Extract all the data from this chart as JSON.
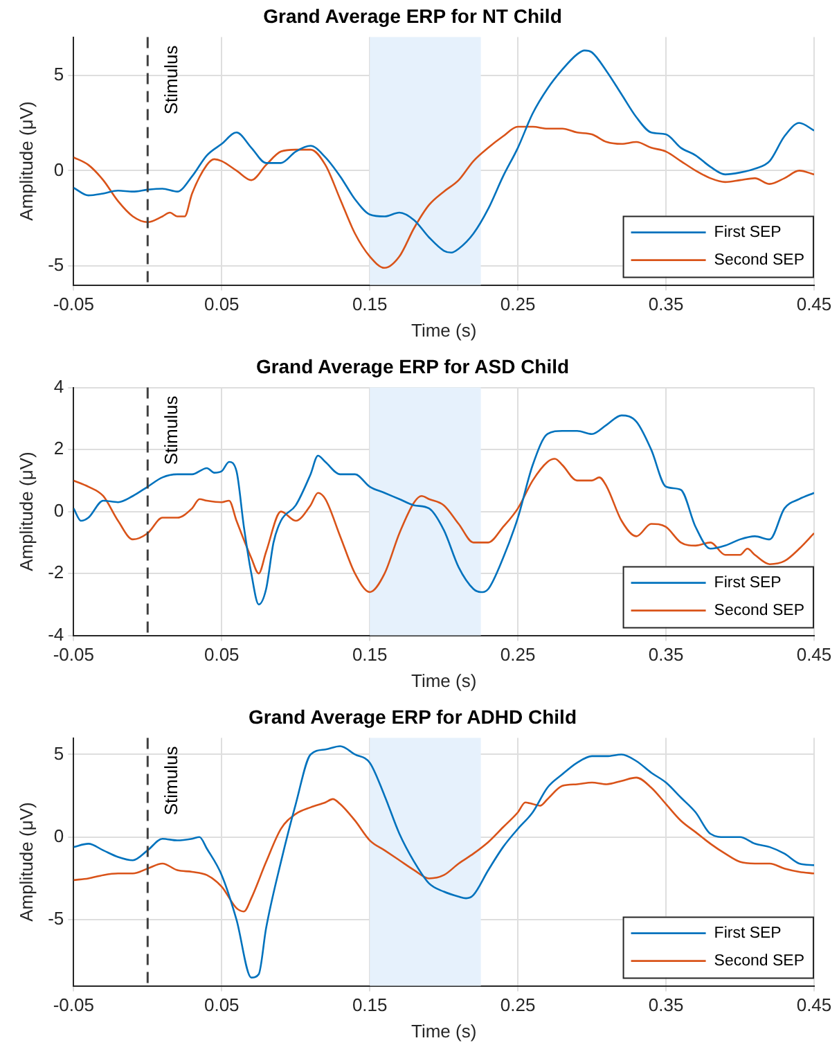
{
  "chart_data": [
    {
      "type": "line",
      "title": "Grand Average ERP for NT Child",
      "xlabel": "Time (s)",
      "ylabel": "Amplitude (μV)",
      "xlim": [
        -0.05,
        0.45
      ],
      "xticks": [
        -0.05,
        0.05,
        0.15,
        0.25,
        0.35,
        0.45
      ],
      "ylim": [
        -6,
        7
      ],
      "yticks": [
        -5,
        0,
        5
      ],
      "grid": true,
      "legend": "bottom right",
      "marker": "none",
      "line_style": "solid",
      "ref_lines": [
        {
          "axis": "x",
          "value": 0,
          "label": "Stimulus",
          "color": "#404040",
          "line_style": "dashed"
        }
      ],
      "bands": [
        {
          "axis": "x",
          "from": 0.15,
          "to": 0.225,
          "color": "#e6f1fc"
        }
      ],
      "series": [
        {
          "name": "First SEP",
          "color": "#0072bd",
          "x": [
            -0.05,
            -0.04,
            -0.03,
            -0.02,
            -0.01,
            0,
            0.01,
            0.02,
            0.03,
            0.04,
            0.05,
            0.06,
            0.07,
            0.08,
            0.09,
            0.1,
            0.11,
            0.12,
            0.13,
            0.14,
            0.15,
            0.16,
            0.17,
            0.18,
            0.19,
            0.2,
            0.205,
            0.21,
            0.22,
            0.23,
            0.24,
            0.25,
            0.26,
            0.27,
            0.28,
            0.29,
            0.295,
            0.3,
            0.31,
            0.32,
            0.33,
            0.34,
            0.35,
            0.36,
            0.37,
            0.38,
            0.39,
            0.4,
            0.41,
            0.42,
            0.43,
            0.44,
            0.45
          ],
          "values": [
            -0.9,
            -1.3,
            -1.2,
            -1.05,
            -1.1,
            -1.0,
            -0.95,
            -1.1,
            -0.3,
            0.8,
            1.4,
            2.0,
            1.2,
            0.4,
            0.4,
            1.0,
            1.3,
            0.7,
            -0.3,
            -1.5,
            -2.3,
            -2.4,
            -2.2,
            -2.6,
            -3.5,
            -4.2,
            -4.3,
            -4.1,
            -3.3,
            -2.0,
            -0.3,
            1.2,
            3.0,
            4.3,
            5.3,
            6.1,
            6.3,
            6.2,
            5.2,
            4.0,
            2.8,
            2.0,
            1.9,
            1.2,
            0.8,
            0.2,
            -0.2,
            -0.1,
            0.1,
            0.5,
            1.8,
            2.5,
            2.1
          ]
        },
        {
          "name": "Second SEP",
          "color": "#d95319",
          "x": [
            -0.05,
            -0.04,
            -0.03,
            -0.02,
            -0.01,
            0,
            0.01,
            0.015,
            0.02,
            0.025,
            0.03,
            0.04,
            0.045,
            0.05,
            0.06,
            0.07,
            0.08,
            0.09,
            0.1,
            0.11,
            0.12,
            0.13,
            0.14,
            0.15,
            0.16,
            0.17,
            0.18,
            0.19,
            0.2,
            0.21,
            0.22,
            0.23,
            0.24,
            0.25,
            0.26,
            0.27,
            0.28,
            0.29,
            0.3,
            0.31,
            0.32,
            0.33,
            0.34,
            0.35,
            0.36,
            0.37,
            0.38,
            0.39,
            0.4,
            0.41,
            0.42,
            0.43,
            0.44,
            0.45
          ],
          "values": [
            0.7,
            0.3,
            -0.5,
            -1.6,
            -2.4,
            -2.7,
            -2.4,
            -2.2,
            -2.4,
            -2.4,
            -1.2,
            0.3,
            0.6,
            0.5,
            0.0,
            -0.5,
            0.3,
            1.0,
            1.1,
            1.1,
            0.3,
            -1.5,
            -3.3,
            -4.5,
            -5.1,
            -4.5,
            -3.0,
            -1.8,
            -1.1,
            -0.5,
            0.5,
            1.2,
            1.8,
            2.3,
            2.3,
            2.2,
            2.2,
            2.0,
            1.9,
            1.5,
            1.4,
            1.5,
            1.2,
            1.0,
            0.5,
            0.0,
            -0.4,
            -0.6,
            -0.5,
            -0.4,
            -0.7,
            -0.4,
            0.0,
            -0.2
          ]
        }
      ]
    },
    {
      "type": "line",
      "title": "Grand Average ERP for ASD Child",
      "xlabel": "Time (s)",
      "ylabel": "Amplitude (μV)",
      "xlim": [
        -0.05,
        0.45
      ],
      "xticks": [
        -0.05,
        0.05,
        0.15,
        0.25,
        0.35,
        0.45
      ],
      "ylim": [
        -4,
        4
      ],
      "yticks": [
        -4,
        -2,
        0,
        2,
        4
      ],
      "grid": true,
      "legend": "bottom right",
      "marker": "none",
      "line_style": "solid",
      "ref_lines": [
        {
          "axis": "x",
          "value": 0,
          "label": "Stimulus",
          "color": "#404040",
          "line_style": "dashed"
        }
      ],
      "bands": [
        {
          "axis": "x",
          "from": 0.15,
          "to": 0.225,
          "color": "#e6f1fc"
        }
      ],
      "series": [
        {
          "name": "First SEP",
          "color": "#0072bd",
          "x": [
            -0.05,
            -0.045,
            -0.04,
            -0.03,
            -0.02,
            -0.01,
            0,
            0.01,
            0.02,
            0.03,
            0.04,
            0.045,
            0.05,
            0.055,
            0.06,
            0.065,
            0.07,
            0.075,
            0.08,
            0.085,
            0.09,
            0.1,
            0.11,
            0.115,
            0.12,
            0.13,
            0.14,
            0.15,
            0.16,
            0.17,
            0.18,
            0.19,
            0.2,
            0.21,
            0.22,
            0.225,
            0.23,
            0.24,
            0.25,
            0.26,
            0.27,
            0.28,
            0.29,
            0.3,
            0.31,
            0.32,
            0.33,
            0.34,
            0.35,
            0.36,
            0.37,
            0.38,
            0.39,
            0.4,
            0.41,
            0.42,
            0.43,
            0.44,
            0.45
          ],
          "values": [
            0.1,
            -0.3,
            -0.2,
            0.35,
            0.3,
            0.5,
            0.8,
            1.1,
            1.2,
            1.2,
            1.4,
            1.25,
            1.3,
            1.6,
            1.3,
            -0.5,
            -2.0,
            -3.0,
            -2.5,
            -1.0,
            -0.3,
            0.2,
            1.2,
            1.8,
            1.6,
            1.2,
            1.2,
            0.8,
            0.6,
            0.4,
            0.2,
            0.1,
            -0.6,
            -1.8,
            -2.5,
            -2.6,
            -2.5,
            -1.5,
            -0.2,
            1.5,
            2.5,
            2.6,
            2.6,
            2.5,
            2.8,
            3.1,
            2.9,
            2.0,
            0.8,
            0.7,
            -0.5,
            -1.2,
            -1.1,
            -0.9,
            -0.8,
            -0.9,
            0.1,
            0.4,
            0.6
          ]
        },
        {
          "name": "Second SEP",
          "color": "#d95319",
          "x": [
            -0.05,
            -0.04,
            -0.03,
            -0.02,
            -0.01,
            0,
            0.01,
            0.02,
            0.03,
            0.035,
            0.04,
            0.05,
            0.055,
            0.06,
            0.07,
            0.075,
            0.08,
            0.09,
            0.1,
            0.11,
            0.115,
            0.12,
            0.13,
            0.14,
            0.15,
            0.16,
            0.17,
            0.18,
            0.185,
            0.19,
            0.2,
            0.21,
            0.22,
            0.23,
            0.24,
            0.25,
            0.26,
            0.27,
            0.275,
            0.28,
            0.29,
            0.3,
            0.305,
            0.31,
            0.32,
            0.33,
            0.34,
            0.35,
            0.36,
            0.37,
            0.38,
            0.39,
            0.4,
            0.405,
            0.41,
            0.42,
            0.43,
            0.44,
            0.45
          ],
          "values": [
            1.0,
            0.8,
            0.5,
            -0.3,
            -0.9,
            -0.7,
            -0.2,
            -0.2,
            0.1,
            0.4,
            0.35,
            0.3,
            0.35,
            -0.3,
            -1.5,
            -2.0,
            -1.3,
            0.0,
            -0.3,
            0.2,
            0.6,
            0.4,
            -0.8,
            -2.0,
            -2.6,
            -2.0,
            -0.7,
            0.3,
            0.5,
            0.4,
            0.2,
            -0.4,
            -1.0,
            -1.0,
            -0.5,
            0.1,
            1.0,
            1.6,
            1.7,
            1.5,
            1.0,
            1.0,
            1.1,
            0.8,
            -0.3,
            -0.8,
            -0.4,
            -0.5,
            -1.0,
            -1.1,
            -1.0,
            -1.4,
            -1.4,
            -1.2,
            -1.4,
            -1.7,
            -1.6,
            -1.2,
            -0.7
          ]
        }
      ]
    },
    {
      "type": "line",
      "title": "Grand Average ERP for ADHD Child",
      "xlabel": "Time (s)",
      "ylabel": "Amplitude (μV)",
      "xlim": [
        -0.05,
        0.45
      ],
      "xticks": [
        -0.05,
        0.05,
        0.15,
        0.25,
        0.35,
        0.45
      ],
      "ylim": [
        -9,
        6
      ],
      "yticks": [
        -5,
        0,
        5
      ],
      "grid": true,
      "legend": "bottom right",
      "marker": "none",
      "line_style": "solid",
      "ref_lines": [
        {
          "axis": "x",
          "value": 0,
          "label": "Stimulus",
          "color": "#404040",
          "line_style": "dashed"
        }
      ],
      "bands": [
        {
          "axis": "x",
          "from": 0.15,
          "to": 0.225,
          "color": "#e6f1fc"
        }
      ],
      "series": [
        {
          "name": "First SEP",
          "color": "#0072bd",
          "x": [
            -0.05,
            -0.04,
            -0.03,
            -0.02,
            -0.01,
            0,
            0.01,
            0.02,
            0.03,
            0.035,
            0.04,
            0.05,
            0.06,
            0.07,
            0.075,
            0.08,
            0.09,
            0.1,
            0.11,
            0.12,
            0.13,
            0.14,
            0.15,
            0.16,
            0.17,
            0.18,
            0.19,
            0.2,
            0.21,
            0.215,
            0.22,
            0.23,
            0.24,
            0.25,
            0.26,
            0.27,
            0.28,
            0.29,
            0.3,
            0.31,
            0.32,
            0.33,
            0.34,
            0.35,
            0.36,
            0.37,
            0.38,
            0.39,
            0.4,
            0.41,
            0.42,
            0.43,
            0.44,
            0.45
          ],
          "values": [
            -0.6,
            -0.4,
            -0.8,
            -1.2,
            -1.4,
            -0.8,
            -0.1,
            -0.2,
            -0.1,
            0.0,
            -0.7,
            -2.3,
            -5.0,
            -8.5,
            -8.3,
            -5.5,
            -1.5,
            2.0,
            5.0,
            5.3,
            5.5,
            5.0,
            4.5,
            2.5,
            0.2,
            -1.5,
            -2.8,
            -3.3,
            -3.6,
            -3.7,
            -3.5,
            -2.0,
            -0.6,
            0.5,
            1.5,
            3.0,
            3.8,
            4.5,
            4.9,
            4.9,
            5.0,
            4.6,
            3.9,
            3.3,
            2.4,
            1.5,
            0.2,
            0.0,
            0.0,
            -0.4,
            -0.6,
            -1.0,
            -1.6,
            -1.7
          ]
        },
        {
          "name": "Second SEP",
          "color": "#d95319",
          "x": [
            -0.05,
            -0.04,
            -0.03,
            -0.02,
            -0.01,
            0,
            0.01,
            0.02,
            0.03,
            0.04,
            0.05,
            0.06,
            0.065,
            0.07,
            0.08,
            0.09,
            0.1,
            0.11,
            0.12,
            0.125,
            0.13,
            0.14,
            0.15,
            0.16,
            0.17,
            0.18,
            0.19,
            0.2,
            0.21,
            0.22,
            0.23,
            0.24,
            0.25,
            0.255,
            0.26,
            0.265,
            0.27,
            0.28,
            0.29,
            0.3,
            0.31,
            0.32,
            0.33,
            0.34,
            0.35,
            0.36,
            0.37,
            0.38,
            0.39,
            0.4,
            0.41,
            0.42,
            0.43,
            0.44,
            0.45
          ],
          "values": [
            -2.6,
            -2.5,
            -2.3,
            -2.2,
            -2.2,
            -1.9,
            -1.6,
            -2.0,
            -2.1,
            -2.3,
            -3.0,
            -4.3,
            -4.5,
            -3.7,
            -1.5,
            0.5,
            1.4,
            1.8,
            2.1,
            2.3,
            2.0,
            1.0,
            -0.2,
            -0.8,
            -1.4,
            -2.0,
            -2.5,
            -2.3,
            -1.6,
            -1.0,
            -0.3,
            0.6,
            1.5,
            2.1,
            2.0,
            1.9,
            2.3,
            3.1,
            3.2,
            3.3,
            3.2,
            3.4,
            3.6,
            3.0,
            2.0,
            1.0,
            0.3,
            -0.4,
            -1.0,
            -1.5,
            -1.6,
            -1.6,
            -1.9,
            -2.1,
            -2.2
          ]
        }
      ]
    }
  ]
}
